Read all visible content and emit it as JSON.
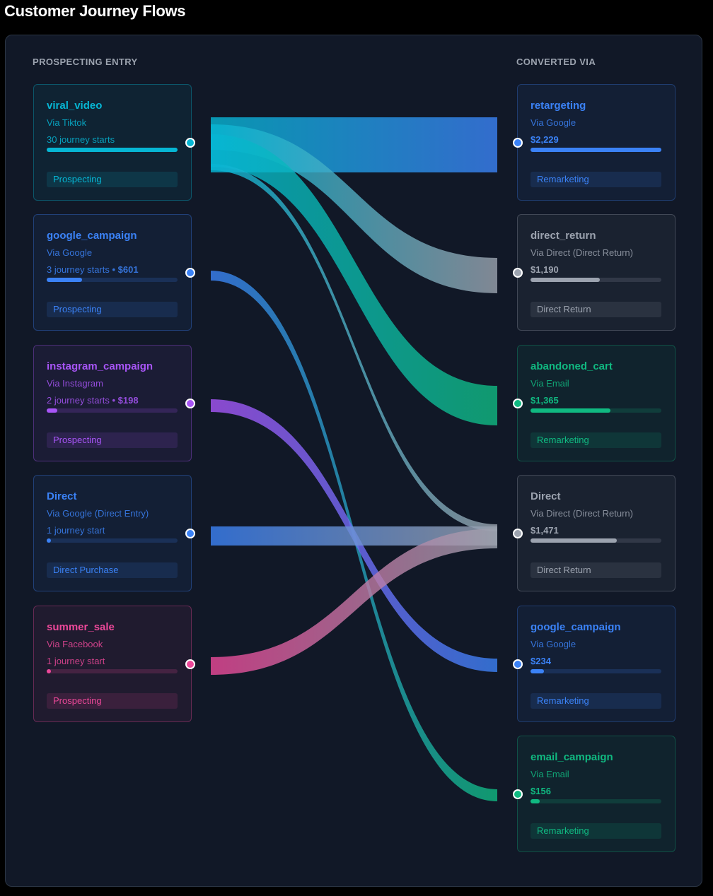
{
  "title": "Customer Journey Flows",
  "left_heading": "PROSPECTING ENTRY",
  "right_heading": "CONVERTED VIA",
  "colors": {
    "cyan": "#06b6d4",
    "blue": "#3b82f6",
    "purple": "#a855f7",
    "pink": "#ec4899",
    "gray": "#9ca3af",
    "green": "#10b981",
    "background": "#111827"
  },
  "sources": [
    {
      "name": "viral_video",
      "via": "Via Tiktok",
      "stats": "30 journey starts",
      "revenue": "",
      "share": 1.0,
      "badge": "Prospecting",
      "color": "#06b6d4"
    },
    {
      "name": "google_campaign",
      "via": "Via Google",
      "stats": "3 journey starts",
      "revenue": " • $601",
      "share": 0.27,
      "badge": "Prospecting",
      "color": "#3b82f6"
    },
    {
      "name": "instagram_campaign",
      "via": "Via Instagram",
      "stats": "2 journey starts",
      "revenue": " • $198",
      "share": 0.08,
      "badge": "Prospecting",
      "color": "#a855f7"
    },
    {
      "name": "Direct",
      "via": "Via Google (Direct Entry)",
      "stats": "1 journey start",
      "revenue": "",
      "share": 0.03,
      "badge": "Direct Purchase",
      "color": "#3b82f6"
    },
    {
      "name": "summer_sale",
      "via": "Via Facebook",
      "stats": "1 journey start",
      "revenue": "",
      "share": 0.03,
      "badge": "Prospecting",
      "color": "#ec4899"
    }
  ],
  "targets": [
    {
      "name": "retargeting",
      "via": "Via Google",
      "amount": "$2,229",
      "share": 1.0,
      "badge": "Remarketing",
      "color": "#3b82f6"
    },
    {
      "name": "direct_return",
      "via": "Via Direct (Direct Return)",
      "amount": "$1,190",
      "share": 0.53,
      "badge": "Direct Return",
      "color": "#9ca3af"
    },
    {
      "name": "abandoned_cart",
      "via": "Via Email",
      "amount": "$1,365",
      "share": 0.61,
      "badge": "Remarketing",
      "color": "#10b981"
    },
    {
      "name": "Direct",
      "via": "Via Direct (Direct Return)",
      "amount": "$1,471",
      "share": 0.66,
      "badge": "Direct Return",
      "color": "#9ca3af"
    },
    {
      "name": "google_campaign",
      "via": "Via Google",
      "amount": "$234",
      "share": 0.1,
      "badge": "Remarketing",
      "color": "#3b82f6"
    },
    {
      "name": "email_campaign",
      "via": "Via Email",
      "amount": "$156",
      "share": 0.07,
      "badge": "Remarketing",
      "color": "#10b981"
    }
  ],
  "flows": [
    {
      "source": "viral_video",
      "target": "retargeting"
    },
    {
      "source": "viral_video",
      "target": "direct_return"
    },
    {
      "source": "viral_video",
      "target": "abandoned_cart"
    },
    {
      "source": "viral_video",
      "target": "Direct"
    },
    {
      "source": "google_campaign",
      "target": "email_campaign"
    },
    {
      "source": "instagram_campaign",
      "target": "google_campaign"
    },
    {
      "source": "Direct",
      "target": "Direct"
    },
    {
      "source": "summer_sale",
      "target": "Direct"
    }
  ]
}
